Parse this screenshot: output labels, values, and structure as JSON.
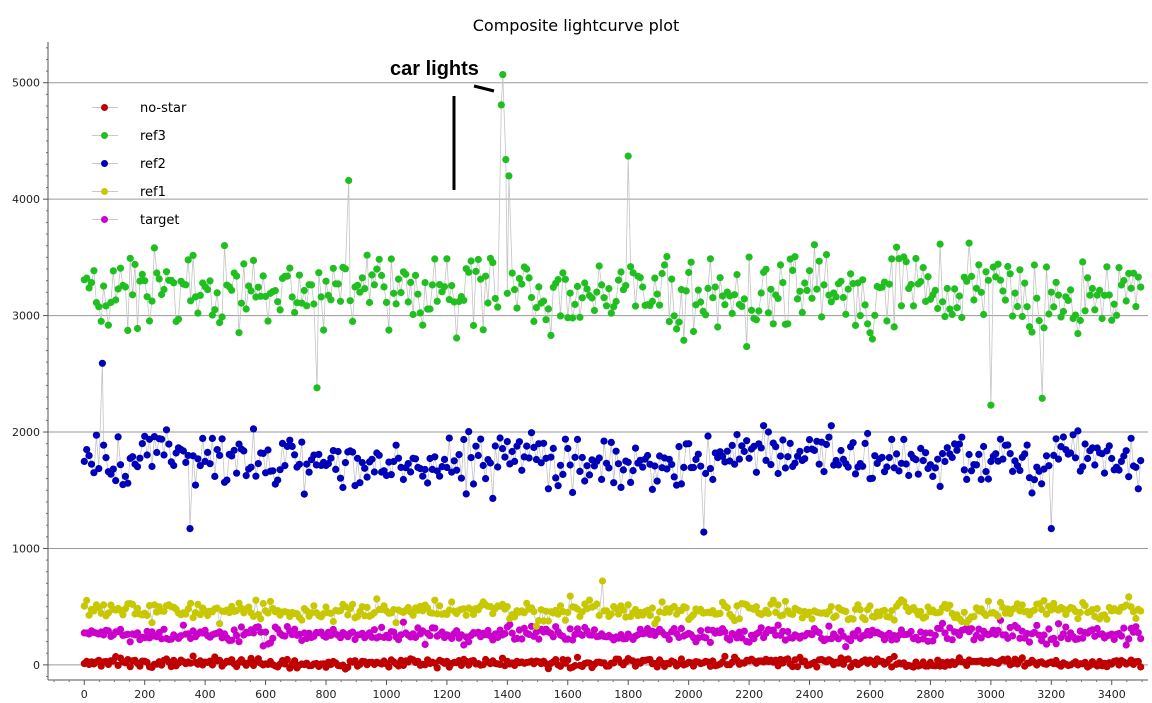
{
  "chart_data": {
    "type": "scatter",
    "title": "Composite lightcurve plot",
    "xlabel": "",
    "ylabel": "",
    "xlim": [
      -120,
      3520
    ],
    "ylim": [
      -130,
      5350
    ],
    "xticks": [
      0,
      200,
      400,
      600,
      800,
      1000,
      1200,
      1400,
      1600,
      1800,
      2000,
      2200,
      2400,
      2600,
      2800,
      3000,
      3200,
      3400
    ],
    "yticks": [
      0,
      1000,
      2000,
      3000,
      4000,
      5000
    ],
    "grid": "horizontal",
    "legend_position": "top-left",
    "lines_connect_points": true,
    "series": [
      {
        "name": "no-star",
        "color": "#c00000",
        "mean": 20,
        "spread": 35,
        "x_step": 8,
        "x_start": 0,
        "x_end": 3500,
        "notable_points": []
      },
      {
        "name": "ref3",
        "color": "#1fbf1f",
        "mean": 3200,
        "spread": 280,
        "x_step": 8,
        "x_start": 0,
        "x_end": 3500,
        "notable_points": [
          {
            "x": 1385,
            "y": 5070
          },
          {
            "x": 1380,
            "y": 4810
          },
          {
            "x": 1395,
            "y": 4340
          },
          {
            "x": 1405,
            "y": 4200
          },
          {
            "x": 1800,
            "y": 4370
          },
          {
            "x": 875,
            "y": 4160
          },
          {
            "x": 3000,
            "y": 2230
          },
          {
            "x": 3170,
            "y": 2290
          },
          {
            "x": 770,
            "y": 2380
          }
        ]
      },
      {
        "name": "ref2",
        "color": "#0000b8",
        "mean": 1750,
        "spread": 200,
        "x_step": 8,
        "x_start": 0,
        "x_end": 3500,
        "notable_points": [
          {
            "x": 60,
            "y": 2590
          },
          {
            "x": 2050,
            "y": 1140
          },
          {
            "x": 350,
            "y": 1170
          },
          {
            "x": 3200,
            "y": 1170
          }
        ]
      },
      {
        "name": "ref1",
        "color": "#c8c800",
        "mean": 460,
        "spread": 70,
        "x_step": 8,
        "x_start": 0,
        "x_end": 3500,
        "notable_points": [
          {
            "x": 1715,
            "y": 720
          }
        ]
      },
      {
        "name": "target",
        "color": "#cc00cc",
        "mean": 260,
        "spread": 60,
        "x_step": 8,
        "x_start": 0,
        "x_end": 3500,
        "notable_points": []
      }
    ],
    "annotations": [
      {
        "text": "car lights",
        "target": {
          "x": 1385,
          "y": 5070
        }
      }
    ]
  }
}
